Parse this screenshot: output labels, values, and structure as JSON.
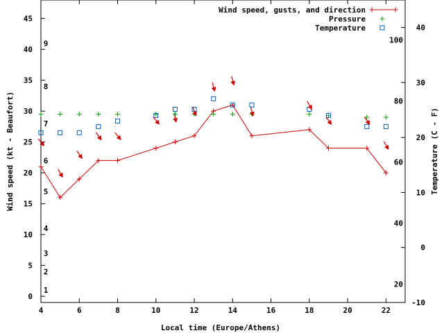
{
  "chart_data": {
    "type": "line",
    "xlabel": "Local time (Europe/Athens)",
    "ylabel": "Wind speed (kt - Beaufort)",
    "y2label": "Temperature (C - F)",
    "xlim": [
      4,
      23
    ],
    "ylim": [
      -1,
      48
    ],
    "y2lim": [
      -10,
      45
    ],
    "x_ticks": [
      4,
      6,
      8,
      10,
      12,
      14,
      16,
      18,
      20,
      22
    ],
    "y_ticks": [
      0,
      5,
      10,
      15,
      20,
      25,
      30,
      35,
      40,
      45
    ],
    "y2_ticks_celsius": [
      -10,
      0,
      10,
      20,
      30,
      40
    ],
    "y2_ticks_fahrenheit": [
      20,
      40,
      60,
      80,
      100
    ],
    "beaufort_labels": [
      {
        "label": "1",
        "kt": 1
      },
      {
        "label": "2",
        "kt": 4
      },
      {
        "label": "3",
        "kt": 7
      },
      {
        "label": "4",
        "kt": 11
      },
      {
        "label": "5",
        "kt": 17
      },
      {
        "label": "6",
        "kt": 22
      },
      {
        "label": "7",
        "kt": 28
      },
      {
        "label": "8",
        "kt": 34
      },
      {
        "label": "9",
        "kt": 41
      }
    ],
    "legend_position": "top-right",
    "grid": false,
    "series": [
      {
        "name": "Wind speed, gusts, and direction",
        "color": "#cc0000",
        "marker": "plus",
        "x": [
          4,
          5,
          6,
          7,
          8,
          10,
          11,
          12,
          13,
          14,
          15,
          18,
          19,
          21,
          22
        ],
        "values": [
          21,
          16,
          19,
          22,
          22,
          24,
          25,
          26,
          30,
          31,
          26,
          27,
          24,
          24,
          20
        ]
      },
      {
        "name": "Pressure",
        "color": "#00a000",
        "marker": "plus",
        "x": [
          4,
          5,
          6,
          7,
          8,
          10,
          11,
          12,
          13,
          14,
          15,
          18,
          19,
          21,
          22
        ],
        "values": [
          29.5,
          29.5,
          29.5,
          29.5,
          29.5,
          29.5,
          29.5,
          29.5,
          29.5,
          29.5,
          29.5,
          29.5,
          29.3,
          29,
          29
        ]
      },
      {
        "name": "Temperature",
        "color": "#0060c0",
        "marker": "square",
        "x": [
          4,
          5,
          6,
          7,
          8,
          10,
          11,
          12,
          13,
          14,
          15,
          18,
          19,
          21,
          22
        ],
        "values": [
          26.5,
          26.5,
          26.5,
          27.5,
          28.4,
          29.3,
          30.3,
          30.3,
          32,
          31,
          31,
          30.3,
          29.3,
          27.5,
          27.5
        ]
      }
    ],
    "wind_direction_arrows": {
      "color": "#cc0000",
      "points": [
        {
          "x": 4,
          "y": 25,
          "angle": 50
        },
        {
          "x": 5,
          "y": 20,
          "angle": 60
        },
        {
          "x": 6,
          "y": 23,
          "angle": 55
        },
        {
          "x": 7,
          "y": 26,
          "angle": 55
        },
        {
          "x": 8,
          "y": 26,
          "angle": 50
        },
        {
          "x": 10,
          "y": 28.5,
          "angle": 50
        },
        {
          "x": 11,
          "y": 29,
          "angle": 80
        },
        {
          "x": 12,
          "y": 30,
          "angle": 70
        },
        {
          "x": 13,
          "y": 34,
          "angle": 75
        },
        {
          "x": 14,
          "y": 35,
          "angle": 75
        },
        {
          "x": 15,
          "y": 30,
          "angle": 75
        },
        {
          "x": 18,
          "y": 31,
          "angle": 60
        },
        {
          "x": 19,
          "y": 28.5,
          "angle": 55
        },
        {
          "x": 21,
          "y": 28.5,
          "angle": 55
        },
        {
          "x": 22,
          "y": 24.5,
          "angle": 60
        }
      ]
    }
  }
}
